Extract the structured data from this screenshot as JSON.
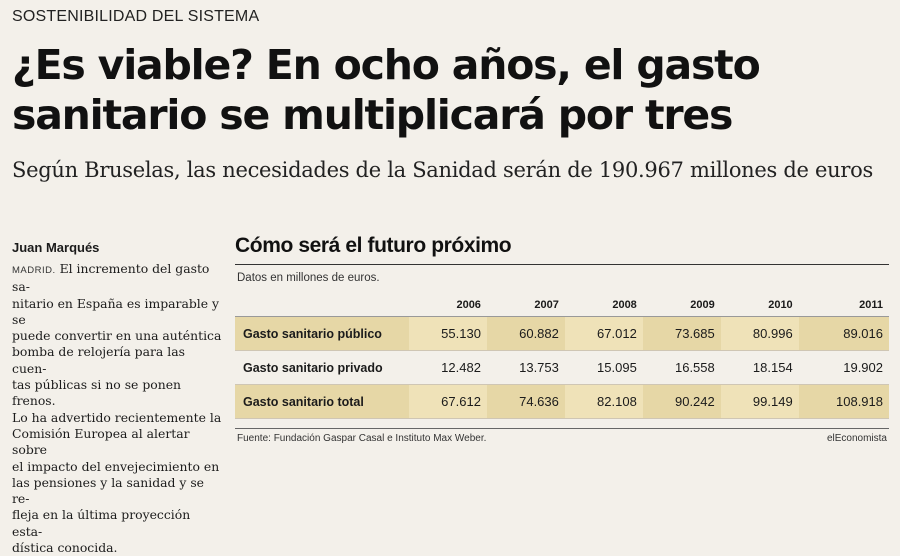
{
  "section": "SOSTENIBILIDAD DEL SISTEMA",
  "headline": {
    "line1": "¿Es viable? En ocho años, el gasto",
    "line2": "sanitario se multiplicará por tres"
  },
  "subtitle": "Según Bruselas, las necesidades de la Sanidad serán de 190.967 millones de euros",
  "article": {
    "byline": "Juan Marqués",
    "dateline": "MADRID.",
    "lines": [
      "El incremento del gasto sa-",
      "nitario en España es imparable y se",
      "puede convertir en una auténtica",
      "bomba de relojería para las cuen-",
      "tas públicas si no se ponen frenos.",
      "Lo ha advertido recientemente la",
      "Comisión Europea al alertar sobre",
      "el impacto del envejecimiento en",
      "las pensiones y la sanidad y se re-",
      "fleja en la última proyección esta-",
      "dística conocida."
    ]
  },
  "sidebar": {
    "title": "Cómo será el futuro próximo",
    "note": "Datos en millones de euros.",
    "source": "Fuente: Fundación Gaspar Casal e Instituto Max Weber.",
    "brand": "elEconomista"
  },
  "chart_data": {
    "type": "table",
    "title": "Cómo será el futuro próximo",
    "columns": [
      "2006",
      "2007",
      "2008",
      "2009",
      "2010",
      "2011"
    ],
    "rows": [
      {
        "label": "Gasto sanitario público",
        "values": [
          "55.130",
          "60.882",
          "67.012",
          "73.685",
          "80.996",
          "89.016"
        ]
      },
      {
        "label": "Gasto sanitario privado",
        "values": [
          "12.482",
          "13.753",
          "15.095",
          "16.558",
          "18.154",
          "19.902"
        ]
      },
      {
        "label": "Gasto sanitario total",
        "values": [
          "67.612",
          "74.636",
          "82.108",
          "90.242",
          "99.149",
          "108.918"
        ]
      }
    ]
  }
}
